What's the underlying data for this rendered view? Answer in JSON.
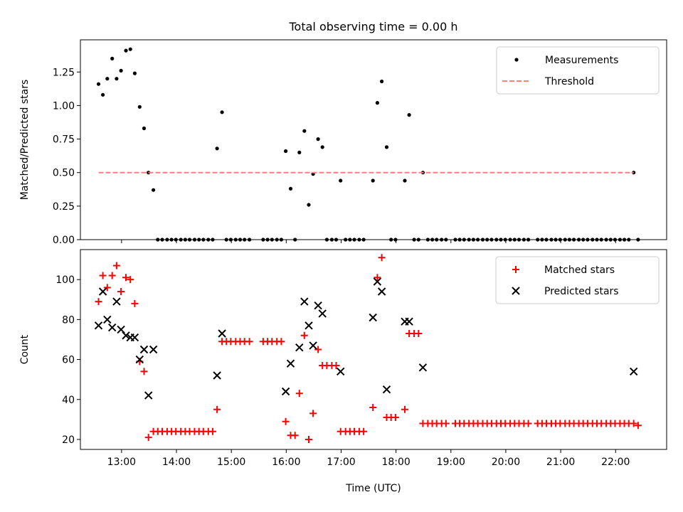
{
  "chart_data": [
    {
      "type": "scatter",
      "title": "Total observing time = 0.00 h",
      "xlabel": "",
      "ylabel": "Matched/Predicted stars",
      "xlim": [
        12.25,
        22.93
      ],
      "ylim": [
        0,
        1.49
      ],
      "yticks": [
        0.0,
        0.25,
        0.5,
        0.75,
        1.0,
        1.25
      ],
      "ytick_labels": [
        "0.00",
        "0.25",
        "0.50",
        "0.75",
        "1.00",
        "1.25"
      ],
      "xticks": [
        13,
        14,
        15,
        16,
        17,
        18,
        19,
        20,
        21,
        22
      ],
      "grid": false,
      "legend_position": "upper-right",
      "legend": [
        "Measurements",
        "Threshold"
      ],
      "series": [
        {
          "name": "Measurements",
          "marker": "dot",
          "color": "#000000",
          "x": [
            12.58,
            12.66,
            12.74,
            12.83,
            12.91,
            12.99,
            13.08,
            13.16,
            13.24,
            13.33,
            13.41,
            13.49,
            13.58,
            13.66,
            13.74,
            13.83,
            13.91,
            13.99,
            14.08,
            14.16,
            14.24,
            14.33,
            14.41,
            14.49,
            14.58,
            14.66,
            14.74,
            14.83,
            14.91,
            14.99,
            15.08,
            15.16,
            15.24,
            15.33,
            15.58,
            15.66,
            15.74,
            15.83,
            15.91,
            15.99,
            16.08,
            16.16,
            16.24,
            16.33,
            16.41,
            16.49,
            16.58,
            16.66,
            16.74,
            16.83,
            16.91,
            16.99,
            17.08,
            17.16,
            17.24,
            17.33,
            17.41,
            17.58,
            17.66,
            17.74,
            17.83,
            17.91,
            17.99,
            18.16,
            18.24,
            18.33,
            18.41,
            18.49,
            18.58,
            18.66,
            18.74,
            18.83,
            18.91,
            19.08,
            19.16,
            19.24,
            19.33,
            19.41,
            19.49,
            19.58,
            19.66,
            19.74,
            19.83,
            19.91,
            19.99,
            20.08,
            20.16,
            20.24,
            20.33,
            20.41,
            20.58,
            20.66,
            20.74,
            20.83,
            20.91,
            20.99,
            21.08,
            21.16,
            21.24,
            21.33,
            21.41,
            21.49,
            21.58,
            21.66,
            21.74,
            21.83,
            21.91,
            21.99,
            22.08,
            22.16,
            22.24,
            22.33,
            22.41
          ],
          "y": [
            1.16,
            1.08,
            1.2,
            1.35,
            1.2,
            1.26,
            1.41,
            1.42,
            1.24,
            0.99,
            0.83,
            0.5,
            0.37,
            0,
            0,
            0,
            0,
            0,
            0,
            0,
            0,
            0,
            0,
            0,
            0,
            0,
            0.68,
            0.95,
            0,
            0,
            0,
            0,
            0,
            0,
            0,
            0,
            0,
            0,
            0,
            0.66,
            0.38,
            0,
            0.65,
            0.81,
            0.26,
            0.49,
            0.75,
            0.69,
            0,
            0,
            0,
            0.44,
            0,
            0,
            0,
            0,
            0,
            0.44,
            1.02,
            1.18,
            0.69,
            0,
            0,
            0.44,
            0.93,
            0,
            0,
            0.5,
            0,
            0,
            0,
            0,
            0,
            0,
            0,
            0,
            0,
            0,
            0,
            0,
            0,
            0,
            0,
            0,
            0,
            0,
            0,
            0,
            0,
            0,
            0,
            0,
            0,
            0,
            0,
            0,
            0,
            0,
            0,
            0,
            0,
            0,
            0,
            0,
            0,
            0,
            0,
            0,
            0,
            0,
            0,
            0.5,
            0
          ]
        },
        {
          "name": "Threshold",
          "marker": "dashed-line",
          "color": "#ff7f7f",
          "x": [
            12.58,
            22.33
          ],
          "y": [
            0.5,
            0.5
          ]
        }
      ]
    },
    {
      "type": "scatter",
      "title": "",
      "xlabel": "Time (UTC)",
      "ylabel": "Count",
      "xlim": [
        12.25,
        22.93
      ],
      "ylim": [
        15,
        115
      ],
      "yticks": [
        20,
        40,
        60,
        80,
        100
      ],
      "ytick_labels": [
        "20",
        "40",
        "60",
        "80",
        "100"
      ],
      "xticks": [
        13,
        14,
        15,
        16,
        17,
        18,
        19,
        20,
        21,
        22
      ],
      "xtick_labels": [
        "13:00",
        "14:00",
        "15:00",
        "16:00",
        "17:00",
        "18:00",
        "19:00",
        "20:00",
        "21:00",
        "22:00"
      ],
      "grid": false,
      "legend_position": "upper-right",
      "legend": [
        "Matched stars",
        "Predicted stars"
      ],
      "series": [
        {
          "name": "Matched stars",
          "marker": "plus",
          "color": "#ff0000",
          "x": [
            12.58,
            12.66,
            12.74,
            12.83,
            12.91,
            12.99,
            13.08,
            13.16,
            13.24,
            13.33,
            13.41,
            13.49,
            13.58,
            13.66,
            13.74,
            13.83,
            13.91,
            13.99,
            14.08,
            14.16,
            14.24,
            14.33,
            14.41,
            14.49,
            14.58,
            14.66,
            14.74,
            14.83,
            14.91,
            14.99,
            15.08,
            15.16,
            15.24,
            15.33,
            15.58,
            15.66,
            15.74,
            15.83,
            15.91,
            15.99,
            16.08,
            16.16,
            16.24,
            16.33,
            16.41,
            16.49,
            16.58,
            16.66,
            16.74,
            16.83,
            16.91,
            16.99,
            17.08,
            17.16,
            17.24,
            17.33,
            17.41,
            17.58,
            17.66,
            17.74,
            17.83,
            17.91,
            17.99,
            18.16,
            18.24,
            18.33,
            18.41,
            18.49,
            18.58,
            18.66,
            18.74,
            18.83,
            18.91,
            19.08,
            19.16,
            19.24,
            19.33,
            19.41,
            19.49,
            19.58,
            19.66,
            19.74,
            19.83,
            19.91,
            19.99,
            20.08,
            20.16,
            20.24,
            20.33,
            20.41,
            20.58,
            20.66,
            20.74,
            20.83,
            20.91,
            20.99,
            21.08,
            21.16,
            21.24,
            21.33,
            21.41,
            21.49,
            21.58,
            21.66,
            21.74,
            21.83,
            21.91,
            21.99,
            22.08,
            22.16,
            22.24,
            22.33,
            22.41
          ],
          "y": [
            89,
            102,
            96,
            102,
            107,
            94,
            101,
            100,
            88,
            59,
            54,
            21,
            24,
            24,
            24,
            24,
            24,
            24,
            24,
            24,
            24,
            24,
            24,
            24,
            24,
            24,
            35,
            69,
            69,
            69,
            69,
            69,
            69,
            69,
            69,
            69,
            69,
            69,
            69,
            29,
            22,
            22,
            43,
            72,
            20,
            33,
            65,
            57,
            57,
            57,
            57,
            24,
            24,
            24,
            24,
            24,
            24,
            36,
            101,
            111,
            31,
            31,
            31,
            35,
            73,
            73,
            73,
            28,
            28,
            28,
            28,
            28,
            28,
            28,
            28,
            28,
            28,
            28,
            28,
            28,
            28,
            28,
            28,
            28,
            28,
            28,
            28,
            28,
            28,
            28,
            28,
            28,
            28,
            28,
            28,
            28,
            28,
            28,
            28,
            28,
            28,
            28,
            28,
            28,
            28,
            28,
            28,
            28,
            28,
            28,
            28,
            28,
            27
          ]
        },
        {
          "name": "Predicted stars",
          "marker": "x",
          "color": "#000000",
          "x": [
            12.58,
            12.66,
            12.74,
            12.83,
            12.91,
            12.99,
            13.08,
            13.16,
            13.24,
            13.33,
            13.41,
            13.49,
            13.58,
            14.74,
            14.83,
            15.99,
            16.08,
            16.24,
            16.33,
            16.41,
            16.49,
            16.58,
            16.66,
            16.99,
            17.58,
            17.66,
            17.74,
            17.83,
            18.16,
            18.24,
            18.49,
            22.33
          ],
          "y": [
            77,
            94,
            80,
            76,
            89,
            75,
            72,
            71,
            71,
            60,
            65,
            42,
            65,
            52,
            73,
            44,
            58,
            66,
            89,
            77,
            67,
            87,
            83,
            54,
            81,
            99,
            94,
            45,
            79,
            79,
            56,
            54
          ]
        }
      ]
    }
  ]
}
